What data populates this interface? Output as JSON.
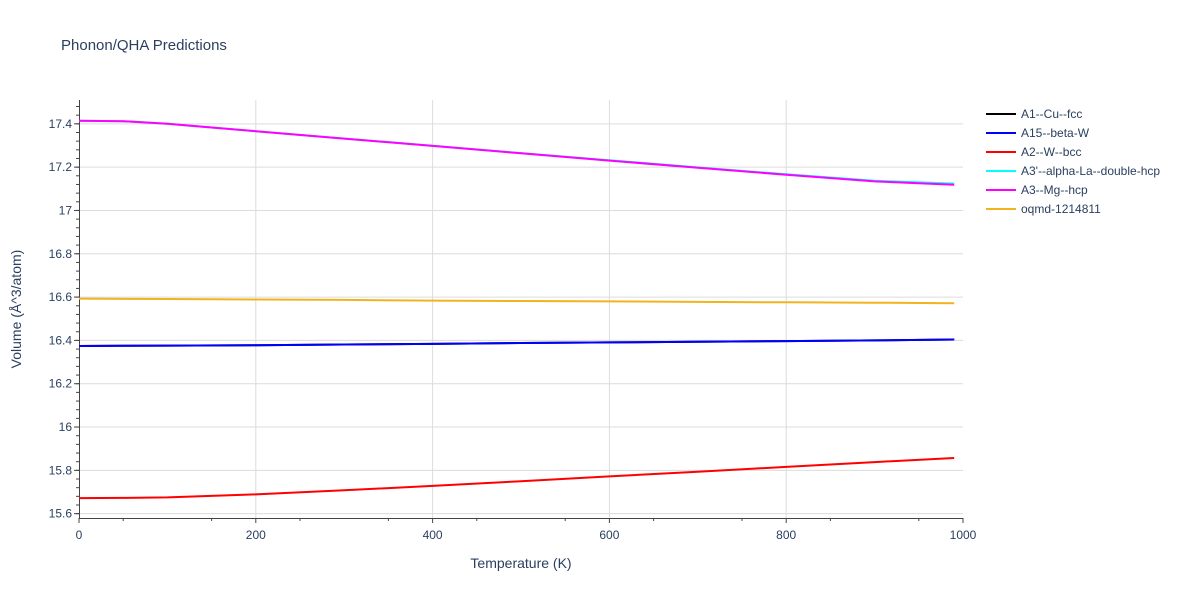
{
  "chart_data": {
    "type": "line",
    "title": "Phonon/QHA Predictions",
    "xlabel": "Temperature (K)",
    "ylabel": "Volume (Å^3/atom)",
    "xlim": [
      0,
      1000
    ],
    "ylim": [
      15.58,
      17.51
    ],
    "x_ticks": [
      "0",
      "200",
      "400",
      "600",
      "800",
      "1000"
    ],
    "y_ticks": [
      "15.6",
      "15.8",
      "16",
      "16.2",
      "16.4",
      "16.6",
      "16.8",
      "17",
      "17.2",
      "17.4"
    ],
    "grid": true,
    "legend_position": "right",
    "series": [
      {
        "name": "A1--Cu--fcc",
        "color": "#000000",
        "x": [
          0,
          50,
          100,
          200,
          300,
          400,
          500,
          600,
          700,
          800,
          900,
          990
        ],
        "y": [
          16.374,
          16.375,
          16.376,
          16.378,
          16.381,
          16.384,
          16.388,
          16.391,
          16.394,
          16.397,
          16.4,
          16.404
        ]
      },
      {
        "name": "A15--beta-W",
        "color": "#0000ff",
        "x": [
          0,
          50,
          100,
          200,
          300,
          400,
          500,
          600,
          700,
          800,
          900,
          990
        ],
        "y": [
          16.374,
          16.375,
          16.376,
          16.378,
          16.381,
          16.384,
          16.388,
          16.391,
          16.394,
          16.397,
          16.4,
          16.404
        ]
      },
      {
        "name": "A2--W--bcc",
        "color": "#ff0000",
        "x": [
          0,
          50,
          100,
          200,
          300,
          400,
          500,
          600,
          700,
          800,
          900,
          990
        ],
        "y": [
          15.672,
          15.673,
          15.675,
          15.689,
          15.708,
          15.728,
          15.75,
          15.772,
          15.794,
          15.816,
          15.838,
          15.857
        ]
      },
      {
        "name": "A3'--alpha-La--double-hcp",
        "color": "#00ffff",
        "x": [
          0,
          50,
          100,
          200,
          300,
          400,
          500,
          600,
          700,
          800,
          900,
          990
        ],
        "y": [
          17.414,
          17.412,
          17.4,
          17.366,
          17.332,
          17.299,
          17.265,
          17.232,
          17.199,
          17.167,
          17.137,
          17.124
        ]
      },
      {
        "name": "A3--Mg--hcp",
        "color": "#ff00ff",
        "x": [
          0,
          50,
          100,
          200,
          300,
          400,
          500,
          600,
          700,
          800,
          900,
          990
        ],
        "y": [
          17.414,
          17.412,
          17.4,
          17.366,
          17.332,
          17.298,
          17.264,
          17.23,
          17.197,
          17.165,
          17.134,
          17.119
        ]
      },
      {
        "name": "oqmd-1214811",
        "color": "#f2b31d",
        "x": [
          0,
          100,
          200,
          300,
          400,
          500,
          600,
          700,
          800,
          900,
          990
        ],
        "y": [
          16.593,
          16.591,
          16.589,
          16.587,
          16.584,
          16.582,
          16.58,
          16.578,
          16.576,
          16.574,
          16.572
        ]
      }
    ]
  }
}
